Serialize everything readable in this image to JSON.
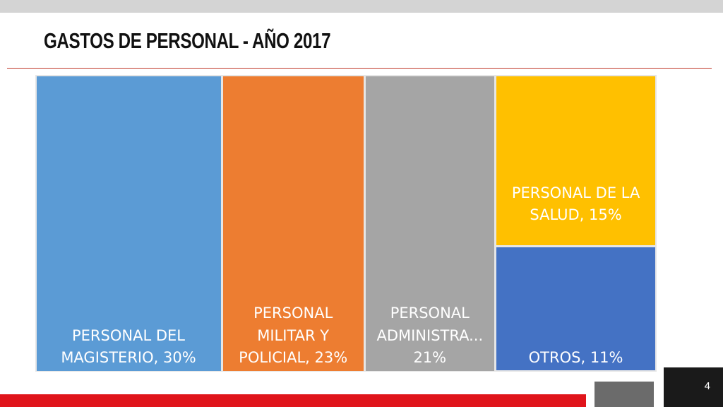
{
  "slide": {
    "title": "GASTOS DE PERSONAL - AÑO 2017",
    "page_number": "4"
  },
  "chart_data": {
    "type": "treemap",
    "title": "",
    "items": [
      {
        "label": "PERSONAL DEL\nMAGISTERIO, 30%",
        "name": "PERSONAL DEL MAGISTERIO",
        "value": 30,
        "color": "#5b9bd5"
      },
      {
        "label": "PERSONAL\nMILITAR Y\nPOLICIAL, 23%",
        "name": "PERSONAL MILITAR Y POLICIAL",
        "value": 23,
        "color": "#ed7d31"
      },
      {
        "label": "PERSONAL\nADMINISTRA...\n21%",
        "name": "PERSONAL ADMINISTRA...",
        "value": 21,
        "color": "#a5a5a5"
      },
      {
        "label": "PERSONAL DE LA\nSALUD, 15%",
        "name": "PERSONAL DE LA SALUD",
        "value": 15,
        "color": "#ffc000"
      },
      {
        "label": "OTROS, 11%",
        "name": "OTROS",
        "value": 11,
        "color": "#4472c4"
      }
    ]
  }
}
